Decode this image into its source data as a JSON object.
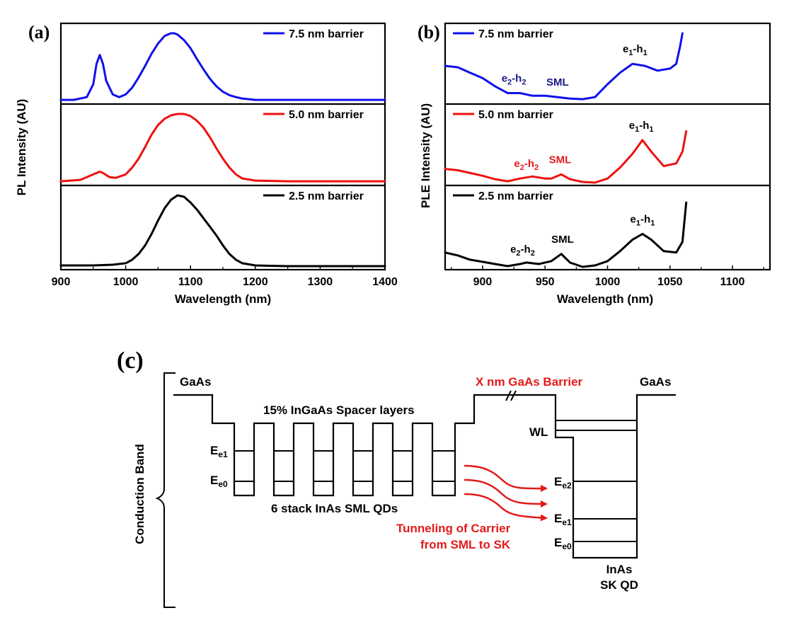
{
  "colors": {
    "blue": "#1010ee",
    "red": "#ee1111",
    "black": "#000000",
    "navy": "#1a1a8a",
    "annotation_red": "#e41a1a"
  },
  "chart_data": [
    {
      "type": "line",
      "panel_label": "(a)",
      "xlabel": "Wavelength (nm)",
      "ylabel": "PL Intensity (AU)",
      "xlim": [
        900,
        1400
      ],
      "xticks": [
        900,
        1000,
        1100,
        1200,
        1300,
        1400
      ],
      "subpanels": [
        {
          "legend": "7.5 nm barrier",
          "color": "#1010ee",
          "series": {
            "x": [
              900,
              920,
              940,
              950,
              955,
              960,
              965,
              970,
              980,
              990,
              1000,
              1010,
              1020,
              1030,
              1040,
              1050,
              1060,
              1070,
              1075,
              1080,
              1090,
              1100,
              1110,
              1120,
              1130,
              1140,
              1150,
              1160,
              1170,
              1180,
              1190,
              1200,
              1250,
              1300,
              1350,
              1400
            ],
            "y": [
              0.02,
              0.02,
              0.06,
              0.25,
              0.55,
              0.68,
              0.55,
              0.3,
              0.1,
              0.06,
              0.1,
              0.2,
              0.35,
              0.52,
              0.7,
              0.85,
              0.96,
              1.0,
              1.0,
              0.98,
              0.9,
              0.78,
              0.62,
              0.47,
              0.33,
              0.22,
              0.14,
              0.09,
              0.06,
              0.04,
              0.03,
              0.02,
              0.02,
              0.02,
              0.02,
              0.02
            ]
          }
        },
        {
          "legend": "5.0 nm barrier",
          "color": "#ee1111",
          "series": {
            "x": [
              900,
              930,
              950,
              960,
              965,
              975,
              985,
              1000,
              1010,
              1020,
              1030,
              1040,
              1050,
              1060,
              1070,
              1080,
              1090,
              1100,
              1110,
              1120,
              1130,
              1140,
              1150,
              1160,
              1170,
              1180,
              1200,
              1250,
              1300,
              1350,
              1400
            ],
            "y": [
              0.02,
              0.04,
              0.12,
              0.16,
              0.14,
              0.08,
              0.07,
              0.12,
              0.22,
              0.35,
              0.52,
              0.7,
              0.84,
              0.93,
              0.98,
              1.0,
              1.0,
              0.97,
              0.9,
              0.8,
              0.66,
              0.5,
              0.35,
              0.22,
              0.12,
              0.06,
              0.03,
              0.02,
              0.02,
              0.02,
              0.02
            ]
          }
        },
        {
          "legend": "2.5 nm barrier",
          "color": "#000000",
          "series": {
            "x": [
              900,
              950,
              980,
              1000,
              1010,
              1020,
              1030,
              1040,
              1050,
              1060,
              1070,
              1080,
              1090,
              1100,
              1110,
              1120,
              1130,
              1140,
              1150,
              1160,
              1170,
              1180,
              1200,
              1250,
              1300,
              1350,
              1400
            ],
            "y": [
              0.02,
              0.02,
              0.03,
              0.05,
              0.1,
              0.18,
              0.3,
              0.46,
              0.65,
              0.82,
              0.94,
              1.0,
              0.98,
              0.9,
              0.8,
              0.68,
              0.56,
              0.44,
              0.3,
              0.18,
              0.1,
              0.05,
              0.02,
              0.01,
              0.01,
              0.01,
              0.01
            ]
          }
        }
      ]
    },
    {
      "type": "line",
      "panel_label": "(b)",
      "xlabel": "Wavelength (nm)",
      "ylabel": "PLE Intensity (AU)",
      "xlim": [
        870,
        1130
      ],
      "xticks": [
        900,
        950,
        1000,
        1050,
        1100
      ],
      "subpanels": [
        {
          "legend": "7.5 nm barrier",
          "color": "#1010ee",
          "annotations": [
            {
              "text": "e2-h2",
              "main": "e",
              "sub1": "2",
              "mid": "-h",
              "sub2": "2",
              "x": 925,
              "color": "#1a1a8a"
            },
            {
              "text": "SML",
              "x": 960,
              "color": "#1a1a8a"
            },
            {
              "text": "e1-h1",
              "main": "e",
              "sub1": "1",
              "mid": "-h",
              "sub2": "1",
              "x": 1022,
              "color": "#000000"
            }
          ],
          "series": {
            "x": [
              870,
              880,
              890,
              900,
              910,
              920,
              930,
              940,
              950,
              960,
              970,
              980,
              990,
              1000,
              1010,
              1020,
              1030,
              1040,
              1050,
              1055,
              1058,
              1060
            ],
            "y": [
              0.52,
              0.5,
              0.42,
              0.34,
              0.22,
              0.12,
              0.12,
              0.08,
              0.08,
              0.06,
              0.04,
              0.03,
              0.06,
              0.25,
              0.42,
              0.55,
              0.52,
              0.45,
              0.48,
              0.55,
              0.8,
              1.0
            ]
          }
        },
        {
          "legend": "5.0 nm barrier",
          "color": "#ee1111",
          "annotations": [
            {
              "text": "e2-h2",
              "main": "e",
              "sub1": "2",
              "mid": "-h",
              "sub2": "2",
              "x": 935,
              "color": "#e41a1a"
            },
            {
              "text": "SML",
              "x": 962,
              "color": "#e41a1a"
            },
            {
              "text": "e1-h1",
              "main": "e",
              "sub1": "1",
              "mid": "-h",
              "sub2": "1",
              "x": 1027,
              "color": "#000000"
            }
          ],
          "series": {
            "x": [
              870,
              880,
              890,
              900,
              910,
              920,
              930,
              940,
              950,
              955,
              963,
              970,
              980,
              990,
              1000,
              1010,
              1020,
              1028,
              1035,
              1045,
              1055,
              1060,
              1063
            ],
            "y": [
              0.2,
              0.18,
              0.14,
              0.1,
              0.05,
              0.02,
              0.06,
              0.09,
              0.06,
              0.06,
              0.12,
              0.05,
              0.01,
              0.0,
              0.06,
              0.22,
              0.42,
              0.62,
              0.45,
              0.24,
              0.28,
              0.45,
              0.75
            ]
          }
        },
        {
          "legend": "2.5 nm barrier",
          "color": "#000000",
          "annotations": [
            {
              "text": "e2-h2",
              "main": "e",
              "sub1": "2",
              "mid": "-h",
              "sub2": "2",
              "x": 932,
              "color": "#000000"
            },
            {
              "text": "SML",
              "x": 964,
              "color": "#000000"
            },
            {
              "text": "e1-h1",
              "main": "e",
              "sub1": "1",
              "mid": "-h",
              "sub2": "1",
              "x": 1028,
              "color": "#000000"
            }
          ],
          "series": {
            "x": [
              870,
              880,
              890,
              900,
              910,
              920,
              930,
              935,
              945,
              955,
              963,
              970,
              980,
              990,
              1000,
              1010,
              1020,
              1028,
              1035,
              1045,
              1055,
              1060,
              1063
            ],
            "y": [
              0.2,
              0.16,
              0.1,
              0.07,
              0.04,
              0.01,
              0.04,
              0.06,
              0.04,
              0.08,
              0.18,
              0.06,
              0.0,
              0.02,
              0.08,
              0.22,
              0.38,
              0.46,
              0.38,
              0.22,
              0.2,
              0.35,
              0.9
            ]
          }
        }
      ]
    }
  ],
  "diagram": {
    "panel_label": "(c)",
    "gaas_left": "GaAs",
    "gaas_right": "GaAs",
    "spacer_label": "15% InGaAs Spacer layers",
    "barrier_label": "X nm GaAs Barrier",
    "wl_label": "WL",
    "stack_label": "6 stack InAs SML QDs",
    "tunnel_line1": "Tunneling of Carrier",
    "tunnel_line2": "from SML to SK",
    "sk_line1": "InAs",
    "sk_line2": "SK QD",
    "conduction_label": "Conduction Band",
    "sml_levels": [
      {
        "main": "E",
        "sub": "e1"
      },
      {
        "main": "E",
        "sub": "e0"
      }
    ],
    "sk_levels": [
      {
        "main": "E",
        "sub": "e2"
      },
      {
        "main": "E",
        "sub": "e1"
      },
      {
        "main": "E",
        "sub": "e0"
      }
    ]
  }
}
